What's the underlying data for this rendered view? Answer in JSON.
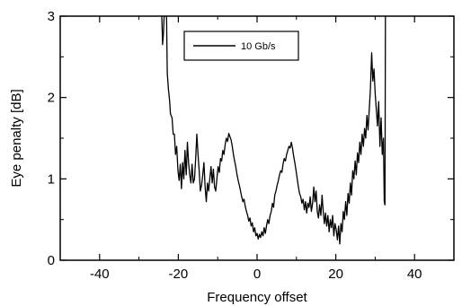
{
  "chart_data": {
    "type": "line",
    "xlabel": "Frequency offset",
    "ylabel": "Eye penalty [dB]",
    "xlim": [
      -50,
      50
    ],
    "ylim": [
      0,
      3
    ],
    "x_ticks": [
      -40,
      -20,
      0,
      20,
      40
    ],
    "x_tick_labels": [
      "-40",
      "-20",
      "0",
      "20",
      "40"
    ],
    "y_ticks": [
      0,
      1,
      2,
      3
    ],
    "y_tick_labels": [
      "0",
      "1",
      "2",
      "3"
    ],
    "grid": false,
    "legend_position": "top-center",
    "series": [
      {
        "name": "10 Gb/s",
        "color": "#000000",
        "points": [
          [
            -24.2,
            3.0
          ],
          [
            -24.0,
            2.65
          ],
          [
            -23.8,
            2.78
          ],
          [
            -23.6,
            3.0
          ],
          [
            -23.0,
            3.0
          ],
          [
            -22.8,
            2.3
          ],
          [
            -22.5,
            2.1
          ],
          [
            -22.2,
            1.95
          ],
          [
            -22.0,
            1.8
          ],
          [
            -21.6,
            1.75
          ],
          [
            -21.3,
            1.55
          ],
          [
            -21.0,
            1.55
          ],
          [
            -20.7,
            1.3
          ],
          [
            -20.4,
            1.4
          ],
          [
            -20.1,
            1.1
          ],
          [
            -19.8,
            0.98
          ],
          [
            -19.5,
            1.18
          ],
          [
            -19.2,
            0.88
          ],
          [
            -18.9,
            1.2
          ],
          [
            -18.6,
            1.0
          ],
          [
            -18.3,
            1.35
          ],
          [
            -18.0,
            1.05
          ],
          [
            -17.7,
            1.45
          ],
          [
            -17.4,
            1.2
          ],
          [
            -17.1,
            1.05
          ],
          [
            -16.8,
            0.95
          ],
          [
            -16.5,
            1.18
          ],
          [
            -16.2,
            0.95
          ],
          [
            -15.9,
            1.0
          ],
          [
            -15.6,
            1.25
          ],
          [
            -15.3,
            1.55
          ],
          [
            -15.0,
            1.3
          ],
          [
            -14.7,
            1.1
          ],
          [
            -14.4,
            0.85
          ],
          [
            -14.1,
            0.92
          ],
          [
            -13.8,
            1.05
          ],
          [
            -13.5,
            1.2
          ],
          [
            -13.2,
            0.9
          ],
          [
            -12.9,
            0.72
          ],
          [
            -12.6,
            0.95
          ],
          [
            -12.3,
            0.85
          ],
          [
            -12.0,
            1.0
          ],
          [
            -11.7,
            1.15
          ],
          [
            -11.4,
            0.95
          ],
          [
            -11.1,
            1.12
          ],
          [
            -10.8,
            0.9
          ],
          [
            -10.5,
            0.85
          ],
          [
            -10.2,
            1.0
          ],
          [
            -9.9,
            1.15
          ],
          [
            -9.6,
            1.08
          ],
          [
            -9.3,
            1.25
          ],
          [
            -9.0,
            1.22
          ],
          [
            -8.7,
            1.35
          ],
          [
            -8.4,
            1.3
          ],
          [
            -8.1,
            1.42
          ],
          [
            -7.8,
            1.5
          ],
          [
            -7.5,
            1.46
          ],
          [
            -7.2,
            1.56
          ],
          [
            -6.9,
            1.52
          ],
          [
            -6.6,
            1.48
          ],
          [
            -6.3,
            1.4
          ],
          [
            -6.0,
            1.3
          ],
          [
            -5.7,
            1.22
          ],
          [
            -5.4,
            1.15
          ],
          [
            -5.1,
            1.05
          ],
          [
            -4.8,
            0.98
          ],
          [
            -4.5,
            0.92
          ],
          [
            -4.2,
            0.85
          ],
          [
            -3.9,
            0.78
          ],
          [
            -3.6,
            0.72
          ],
          [
            -3.3,
            0.75
          ],
          [
            -3.0,
            0.66
          ],
          [
            -2.7,
            0.6
          ],
          [
            -2.4,
            0.55
          ],
          [
            -2.1,
            0.48
          ],
          [
            -1.8,
            0.52
          ],
          [
            -1.5,
            0.42
          ],
          [
            -1.2,
            0.46
          ],
          [
            -0.9,
            0.35
          ],
          [
            -0.6,
            0.4
          ],
          [
            -0.3,
            0.3
          ],
          [
            0.0,
            0.33
          ],
          [
            0.3,
            0.26
          ],
          [
            0.6,
            0.32
          ],
          [
            0.9,
            0.28
          ],
          [
            1.2,
            0.35
          ],
          [
            1.5,
            0.3
          ],
          [
            1.8,
            0.4
          ],
          [
            2.1,
            0.33
          ],
          [
            2.4,
            0.42
          ],
          [
            2.7,
            0.5
          ],
          [
            3.0,
            0.45
          ],
          [
            3.3,
            0.55
          ],
          [
            3.6,
            0.6
          ],
          [
            3.9,
            0.7
          ],
          [
            4.2,
            0.65
          ],
          [
            4.5,
            0.8
          ],
          [
            4.8,
            0.85
          ],
          [
            5.1,
            0.92
          ],
          [
            5.4,
            0.98
          ],
          [
            5.7,
            1.05
          ],
          [
            6.0,
            1.1
          ],
          [
            6.3,
            1.08
          ],
          [
            6.6,
            1.18
          ],
          [
            6.9,
            1.25
          ],
          [
            7.2,
            1.22
          ],
          [
            7.5,
            1.3
          ],
          [
            7.8,
            1.35
          ],
          [
            8.1,
            1.4
          ],
          [
            8.4,
            1.38
          ],
          [
            8.7,
            1.45
          ],
          [
            9.0,
            1.38
          ],
          [
            9.3,
            1.28
          ],
          [
            9.6,
            1.2
          ],
          [
            9.9,
            1.1
          ],
          [
            10.2,
            1.0
          ],
          [
            10.5,
            0.9
          ],
          [
            10.8,
            0.82
          ],
          [
            11.1,
            0.78
          ],
          [
            11.4,
            0.7
          ],
          [
            11.7,
            0.75
          ],
          [
            12.0,
            0.62
          ],
          [
            12.3,
            0.72
          ],
          [
            12.6,
            0.58
          ],
          [
            12.9,
            0.7
          ],
          [
            13.2,
            0.65
          ],
          [
            13.5,
            0.78
          ],
          [
            13.8,
            0.6
          ],
          [
            14.1,
            0.7
          ],
          [
            14.4,
            0.9
          ],
          [
            14.7,
            0.72
          ],
          [
            15.0,
            0.85
          ],
          [
            15.3,
            0.6
          ],
          [
            15.6,
            0.52
          ],
          [
            15.9,
            0.68
          ],
          [
            16.2,
            0.55
          ],
          [
            16.5,
            0.8
          ],
          [
            16.8,
            0.6
          ],
          [
            17.1,
            0.45
          ],
          [
            17.4,
            0.58
          ],
          [
            17.7,
            0.42
          ],
          [
            18.0,
            0.55
          ],
          [
            18.3,
            0.35
          ],
          [
            18.6,
            0.5
          ],
          [
            18.9,
            0.4
          ],
          [
            19.2,
            0.55
          ],
          [
            19.5,
            0.3
          ],
          [
            19.8,
            0.45
          ],
          [
            20.1,
            0.38
          ],
          [
            20.4,
            0.25
          ],
          [
            20.7,
            0.42
          ],
          [
            21.0,
            0.2
          ],
          [
            21.3,
            0.45
          ],
          [
            21.6,
            0.35
          ],
          [
            21.9,
            0.6
          ],
          [
            22.2,
            0.5
          ],
          [
            22.5,
            0.72
          ],
          [
            22.8,
            0.55
          ],
          [
            23.1,
            0.82
          ],
          [
            23.4,
            0.7
          ],
          [
            23.7,
            0.95
          ],
          [
            24.0,
            0.8
          ],
          [
            24.3,
            1.1
          ],
          [
            24.6,
            1.0
          ],
          [
            24.9,
            1.22
          ],
          [
            25.2,
            1.05
          ],
          [
            25.5,
            1.32
          ],
          [
            25.8,
            1.2
          ],
          [
            26.1,
            1.45
          ],
          [
            26.4,
            1.3
          ],
          [
            26.7,
            1.55
          ],
          [
            27.0,
            1.4
          ],
          [
            27.3,
            1.62
          ],
          [
            27.6,
            1.5
          ],
          [
            27.9,
            1.78
          ],
          [
            28.2,
            1.6
          ],
          [
            28.5,
            1.85
          ],
          [
            28.8,
            2.1
          ],
          [
            29.1,
            2.55
          ],
          [
            29.4,
            2.2
          ],
          [
            29.7,
            2.35
          ],
          [
            30.0,
            2.05
          ],
          [
            30.3,
            1.85
          ],
          [
            30.6,
            1.65
          ],
          [
            30.9,
            1.95
          ],
          [
            31.2,
            1.4
          ],
          [
            31.5,
            1.75
          ],
          [
            31.8,
            1.3
          ],
          [
            32.1,
            1.5
          ],
          [
            32.3,
            0.72
          ],
          [
            32.5,
            0.68
          ],
          [
            32.6,
            3.0
          ]
        ]
      }
    ]
  }
}
